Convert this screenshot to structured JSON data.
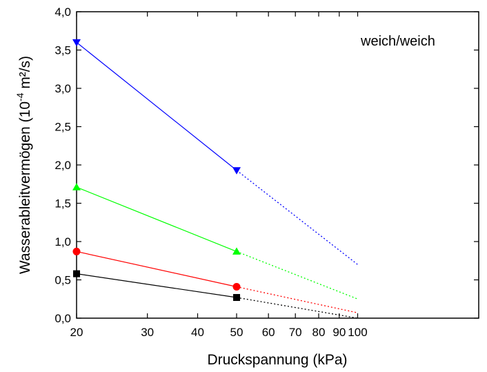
{
  "chart_data": {
    "type": "line",
    "xscale": "log",
    "xlim": [
      20,
      200
    ],
    "ylim": [
      0,
      4.0
    ],
    "xlabel": "Druckspannung (kPa)",
    "ylabel_main": "Wasserableitvermögen (10",
    "ylabel_sup": "-4",
    "ylabel_tail": " m²/s)",
    "annotation": "weich/weich",
    "x_ticks": [
      20,
      30,
      40,
      50,
      60,
      70,
      80,
      90,
      100
    ],
    "x_tick_labels": [
      "20",
      "30",
      "40",
      "50",
      "60",
      "70",
      "80",
      "90",
      "100"
    ],
    "y_ticks": [
      0,
      0.5,
      1.0,
      1.5,
      2.0,
      2.5,
      3.0,
      3.5,
      4.0
    ],
    "y_tick_labels": [
      "0,0",
      "0,5",
      "1,0",
      "1,5",
      "2,0",
      "2,5",
      "3,0",
      "3,5",
      "4,0"
    ],
    "grid": false,
    "series": [
      {
        "color": "#0000ff",
        "marker": "triangle-down",
        "measured": {
          "x": [
            20,
            50
          ],
          "y": [
            3.6,
            1.93
          ]
        },
        "extrapolated": {
          "x": [
            50,
            100
          ],
          "y": [
            1.93,
            0.7
          ]
        }
      },
      {
        "color": "#00ff00",
        "marker": "triangle-up",
        "measured": {
          "x": [
            20,
            50
          ],
          "y": [
            1.71,
            0.87
          ]
        },
        "extrapolated": {
          "x": [
            50,
            100
          ],
          "y": [
            0.87,
            0.25
          ]
        }
      },
      {
        "color": "#ff0000",
        "marker": "circle",
        "measured": {
          "x": [
            20,
            50
          ],
          "y": [
            0.87,
            0.41
          ]
        },
        "extrapolated": {
          "x": [
            50,
            100
          ],
          "y": [
            0.41,
            0.07
          ]
        }
      },
      {
        "color": "#000000",
        "marker": "square",
        "measured": {
          "x": [
            20,
            50
          ],
          "y": [
            0.58,
            0.27
          ]
        },
        "extrapolated": {
          "x": [
            50,
            100
          ],
          "y": [
            0.27,
            0.0
          ]
        }
      }
    ]
  }
}
